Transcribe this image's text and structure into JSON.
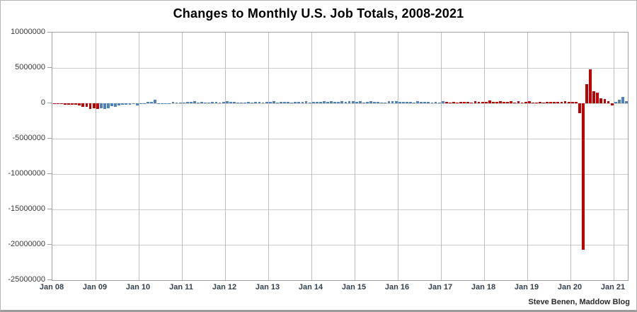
{
  "attribution": "Steve Benen, Maddow Blog",
  "chart_data": {
    "type": "bar",
    "title": "Changes to Monthly U.S. Job Totals, 2008-2021",
    "xlabel": "",
    "ylabel": "",
    "unit": "jobs (change in monthly U.S. job totals)",
    "grid": true,
    "legend": false,
    "ylim": [
      -25000000,
      10000000
    ],
    "y_ticks": [
      10000000,
      5000000,
      0,
      -5000000,
      -10000000,
      -15000000,
      -20000000,
      -25000000
    ],
    "x_tick_labels": [
      "Jan 08",
      "Jan 09",
      "Jan 10",
      "Jan 11",
      "Jan 12",
      "Jan 13",
      "Jan 14",
      "Jan 15",
      "Jan 16",
      "Jan 17",
      "Jan 18",
      "Jan 19",
      "Jan 20",
      "Jan 21"
    ],
    "colors": {
      "red": "#c00000",
      "blue": "#4f81bd"
    },
    "party_periods": [
      {
        "from": "2008-01",
        "to": "2009-01",
        "color": "red"
      },
      {
        "from": "2009-02",
        "to": "2017-01",
        "color": "blue"
      },
      {
        "from": "2017-02",
        "to": "2020-12",
        "color": "red"
      },
      {
        "from": "2021-01",
        "to": "2021-04",
        "color": "blue"
      }
    ],
    "monthly_changes": [
      {
        "year": 2008,
        "values": [
          -17000,
          -83000,
          -72000,
          -210000,
          -190000,
          -160000,
          -210000,
          -260000,
          -450000,
          -470000,
          -765000,
          -695000
        ]
      },
      {
        "year": 2009,
        "values": [
          -780000,
          -730000,
          -800000,
          -690000,
          -360000,
          -470000,
          -330000,
          -220000,
          -200000,
          -200000,
          -10000,
          -280000
        ]
      },
      {
        "year": 2010,
        "values": [
          -40000,
          -70000,
          160000,
          250000,
          520000,
          -130000,
          -60000,
          -40000,
          -50000,
          240000,
          140000,
          70000
        ]
      },
      {
        "year": 2011,
        "values": [
          40000,
          190000,
          210000,
          320000,
          100000,
          210000,
          70000,
          110000,
          220000,
          180000,
          140000,
          200000
        ]
      },
      {
        "year": 2012,
        "values": [
          340000,
          230000,
          240000,
          100000,
          110000,
          90000,
          160000,
          150000,
          160000,
          230000,
          150000,
          240000
        ]
      },
      {
        "year": 2013,
        "values": [
          200000,
          280000,
          140000,
          200000,
          220000,
          170000,
          130000,
          240000,
          190000,
          220000,
          270000,
          80000
        ]
      },
      {
        "year": 2014,
        "values": [
          170000,
          190000,
          230000,
          330000,
          230000,
          290000,
          250000,
          210000,
          260000,
          240000,
          330000,
          260000
        ]
      },
      {
        "year": 2015,
        "values": [
          200000,
          260000,
          90000,
          250000,
          280000,
          210000,
          230000,
          150000,
          120000,
          300000,
          280000,
          270000
        ]
      },
      {
        "year": 2016,
        "values": [
          170000,
          240000,
          220000,
          160000,
          40000,
          270000,
          250000,
          170000,
          250000,
          130000,
          160000,
          150000
        ]
      },
      {
        "year": 2017,
        "values": [
          260000,
          200000,
          70000,
          180000,
          150000,
          230000,
          190000,
          210000,
          10000,
          270000,
          220000,
          170000
        ]
      },
      {
        "year": 2018,
        "values": [
          170000,
          380000,
          180000,
          170000,
          270000,
          210000,
          180000,
          280000,
          110000,
          280000,
          150000,
          230000
        ]
      },
      {
        "year": 2019,
        "values": [
          310000,
          10000,
          150000,
          220000,
          80000,
          180000,
          160000,
          210000,
          210000,
          190000,
          260000,
          180000
        ]
      },
      {
        "year": 2020,
        "values": [
          210000,
          250000,
          -1400000,
          -20700000,
          2700000,
          4800000,
          1700000,
          1500000,
          660000,
          640000,
          260000,
          -310000
        ]
      },
      {
        "year": 2021,
        "values": [
          233000,
          536000,
          916000,
          266000
        ]
      }
    ]
  }
}
